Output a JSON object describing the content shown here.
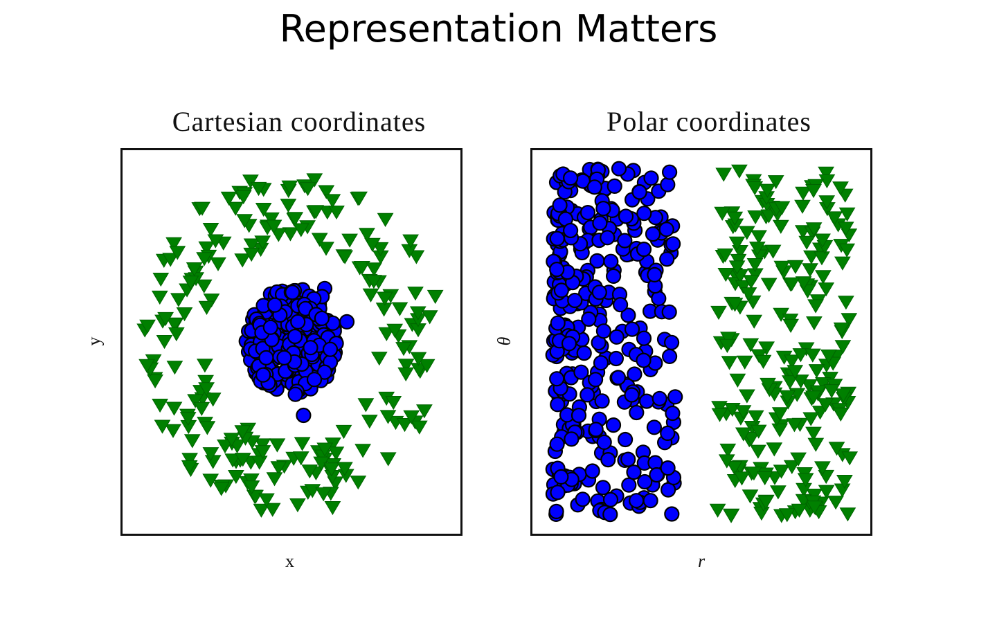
{
  "slide": {
    "title": "Representation Matters"
  },
  "chart_data": [
    {
      "type": "scatter",
      "title": "Cartesian coordinates",
      "xlabel": "x",
      "ylabel": "y",
      "ticks": "none",
      "series": [
        {
          "marker": "circle",
          "color": "#0000ff",
          "edge_color": "#000000",
          "shape": "central blob",
          "center": [
            0,
            0
          ],
          "radius_range": [
            0.0,
            0.32
          ],
          "count": 300
        },
        {
          "marker": "triangle-down",
          "color": "#008000",
          "shape": "ring",
          "center": [
            0,
            0
          ],
          "radius_range": [
            0.55,
            0.95
          ],
          "count": 220
        }
      ],
      "xlim": [
        -1,
        1
      ],
      "ylim": [
        -1,
        1
      ]
    },
    {
      "type": "scatter",
      "title": "Polar coordinates",
      "xlabel": "r",
      "ylabel": "θ",
      "ticks": "none",
      "series": [
        {
          "marker": "circle",
          "color": "#0000ff",
          "edge_color": "#000000",
          "x_range": [
            0.03,
            0.42
          ],
          "y_range": [
            0.02,
            0.98
          ],
          "count": 320
        },
        {
          "marker": "triangle-down",
          "color": "#008000",
          "x_range": [
            0.55,
            0.97
          ],
          "y_range": [
            0.02,
            0.98
          ],
          "count": 230
        }
      ],
      "xlim": [
        0,
        1
      ],
      "ylim": [
        0,
        1
      ]
    }
  ]
}
